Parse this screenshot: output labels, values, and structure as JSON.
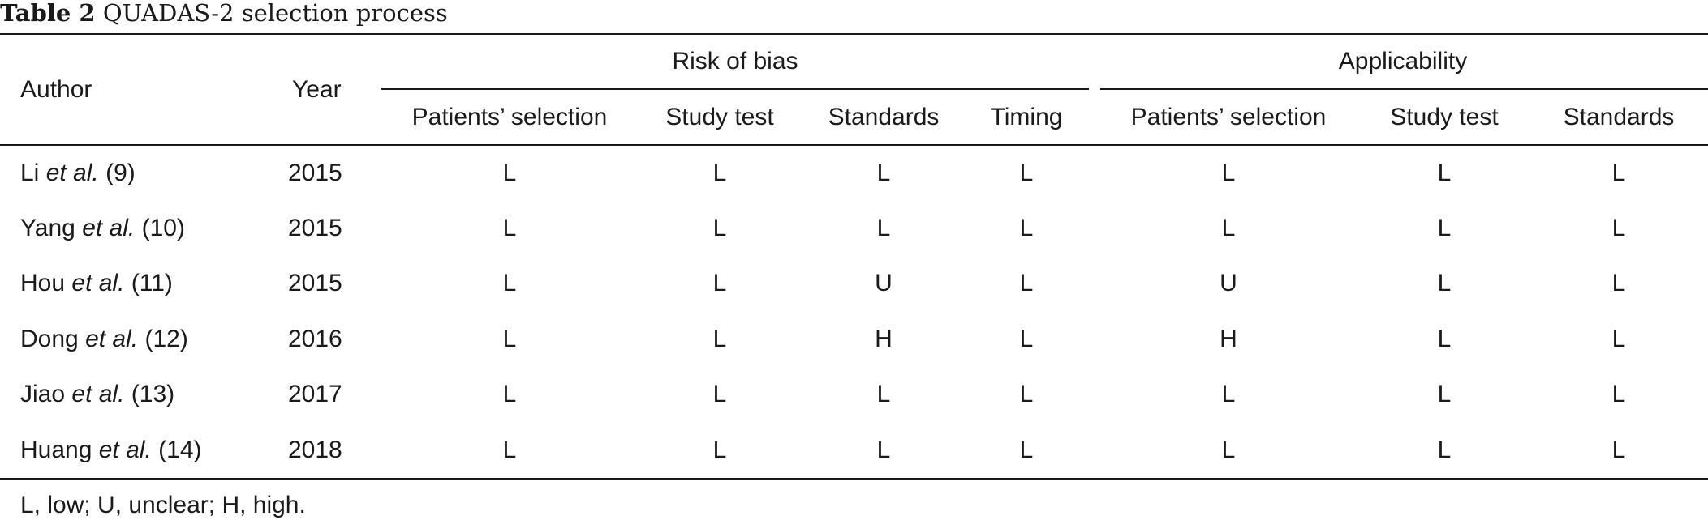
{
  "caption": {
    "label": "Table 2",
    "title": "QUADAS-2 selection process"
  },
  "header": {
    "author": "Author",
    "year": "Year",
    "group_risk": "Risk of bias",
    "group_applicability": "Applicability",
    "columns": [
      "Patients’ selection",
      "Study test",
      "Standards",
      "Timing",
      "Patients’ selection",
      "Study test",
      "Standards"
    ]
  },
  "rows": [
    {
      "name": "Li",
      "etal": "et al.",
      "ref": "(9)",
      "year": "2015",
      "values": [
        "L",
        "L",
        "L",
        "L",
        "L",
        "L",
        "L"
      ]
    },
    {
      "name": "Yang",
      "etal": "et al.",
      "ref": "(10)",
      "year": "2015",
      "values": [
        "L",
        "L",
        "L",
        "L",
        "L",
        "L",
        "L"
      ]
    },
    {
      "name": "Hou",
      "etal": "et al.",
      "ref": "(11)",
      "year": "2015",
      "values": [
        "L",
        "L",
        "U",
        "L",
        "U",
        "L",
        "L"
      ]
    },
    {
      "name": "Dong",
      "etal": "et al.",
      "ref": "(12)",
      "year": "2016",
      "values": [
        "L",
        "L",
        "H",
        "L",
        "H",
        "L",
        "L"
      ]
    },
    {
      "name": "Jiao",
      "etal": "et al.",
      "ref": "(13)",
      "year": "2017",
      "values": [
        "L",
        "L",
        "L",
        "L",
        "L",
        "L",
        "L"
      ]
    },
    {
      "name": "Huang",
      "etal": "et al.",
      "ref": "(14)",
      "year": "2018",
      "values": [
        "L",
        "L",
        "L",
        "L",
        "L",
        "L",
        "L"
      ]
    }
  ],
  "footnote": "L, low; U, unclear; H, high."
}
